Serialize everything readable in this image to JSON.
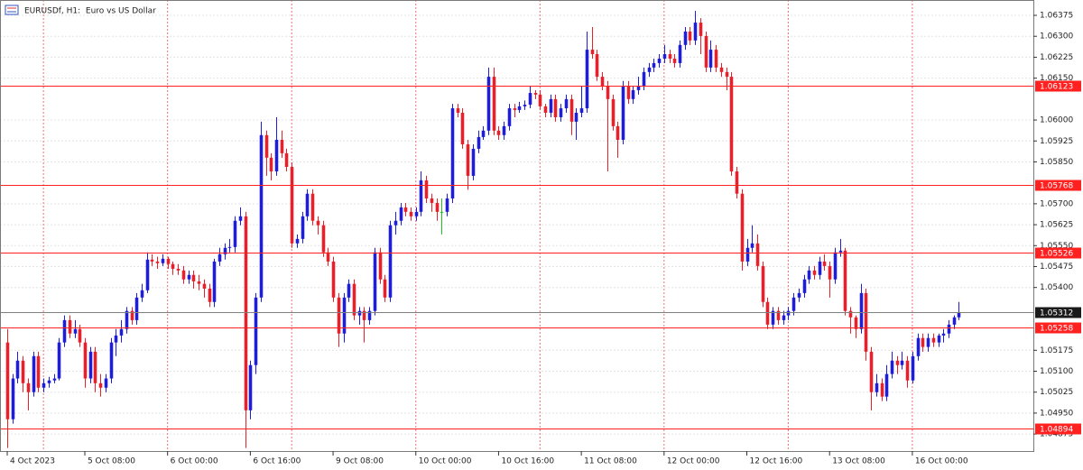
{
  "chart_data": {
    "type": "candlestick",
    "title": "EURUSDf, H1:  Euro vs US Dollar",
    "up_color": "#1e1ed8",
    "down_color": "#e8202a",
    "doji_color": "#20c020",
    "grid": true,
    "xlim": [
      -1.4,
      198.4
    ],
    "ylim": [
      1.04814,
      1.0643
    ],
    "xticks": [
      {
        "value": 0,
        "label": "4 Oct 2023"
      },
      {
        "value": 15,
        "label": "5 Oct 08:00"
      },
      {
        "value": 31,
        "label": "6 Oct 00:00"
      },
      {
        "value": 47,
        "label": "6 Oct 16:00"
      },
      {
        "value": 63,
        "label": "9 Oct 08:00"
      },
      {
        "value": 79,
        "label": "10 Oct 00:00"
      },
      {
        "value": 95,
        "label": "10 Oct 16:00"
      },
      {
        "value": 111,
        "label": "11 Oct 08:00"
      },
      {
        "value": 127,
        "label": "12 Oct 00:00"
      },
      {
        "value": 143,
        "label": "12 Oct 16:00"
      },
      {
        "value": 159,
        "label": "13 Oct 08:00"
      },
      {
        "value": 175,
        "label": "16 Oct 00:00"
      }
    ],
    "x_grid": [
      7,
      31,
      55,
      79,
      103,
      127,
      151,
      175
    ],
    "yticks": [
      {
        "value": 1.06375,
        "label": "1.06375"
      },
      {
        "value": 1.063,
        "label": "1.06300"
      },
      {
        "value": 1.06225,
        "label": "1.06225"
      },
      {
        "value": 1.0615,
        "label": "1.06150"
      },
      {
        "value": 1.06,
        "label": "1.06000"
      },
      {
        "value": 1.05925,
        "label": "1.05925"
      },
      {
        "value": 1.0585,
        "label": "1.05850"
      },
      {
        "value": 1.057,
        "label": "1.05700"
      },
      {
        "value": 1.05625,
        "label": "1.05625"
      },
      {
        "value": 1.0555,
        "label": "1.05550"
      },
      {
        "value": 1.05475,
        "label": "1.05475"
      },
      {
        "value": 1.054,
        "label": "1.05400"
      },
      {
        "value": 1.05175,
        "label": "1.05175"
      },
      {
        "value": 1.051,
        "label": "1.05100"
      },
      {
        "value": 1.05025,
        "label": "1.05025"
      },
      {
        "value": 1.0495,
        "label": "1.04950"
      },
      {
        "value": 1.04875,
        "label": "1.04875"
      }
    ],
    "levels": [
      {
        "value": 1.06123,
        "label": "1.06123",
        "color": "#ff2020"
      },
      {
        "value": 1.05768,
        "label": "1.05768",
        "color": "#ff2020"
      },
      {
        "value": 1.05526,
        "label": "1.05526",
        "color": "#ff2020"
      },
      {
        "value": 1.05312,
        "label": "1.05312",
        "color": "#808080"
      },
      {
        "value": 1.05258,
        "label": "1.05258",
        "color": "#ff2020"
      },
      {
        "value": 1.04894,
        "label": "1.04894",
        "color": "#ff2020"
      }
    ],
    "ohlc": [
      [
        1.05203,
        1.05251,
        1.04825,
        1.04928
      ],
      [
        1.04928,
        1.0509,
        1.04912,
        1.05074
      ],
      [
        1.05074,
        1.0517,
        1.05057,
        1.05138
      ],
      [
        1.05138,
        1.05154,
        1.05025,
        1.05057
      ],
      [
        1.05057,
        1.05074,
        1.0496,
        1.05025
      ],
      [
        1.05025,
        1.0517,
        1.05009,
        1.05154
      ],
      [
        1.05154,
        1.0517,
        1.05025,
        1.05041
      ],
      [
        1.05041,
        1.05074,
        1.05025,
        1.05057
      ],
      [
        1.05057,
        1.0508,
        1.05041,
        1.05067
      ],
      [
        1.05067,
        1.0509,
        1.05057,
        1.05074
      ],
      [
        1.05074,
        1.05219,
        1.05067,
        1.05203
      ],
      [
        1.05203,
        1.053,
        1.05187,
        1.05283
      ],
      [
        1.05283,
        1.053,
        1.05219,
        1.05235
      ],
      [
        1.05235,
        1.05283,
        1.05219,
        1.05251
      ],
      [
        1.05251,
        1.05267,
        1.05187,
        1.05203
      ],
      [
        1.05203,
        1.05219,
        1.05041,
        1.05074
      ],
      [
        1.05074,
        1.05187,
        1.05057,
        1.0517
      ],
      [
        1.0517,
        1.05187,
        1.05025,
        1.05057
      ],
      [
        1.05057,
        1.0509,
        1.05009,
        1.05041
      ],
      [
        1.05041,
        1.0509,
        1.05025,
        1.05074
      ],
      [
        1.05074,
        1.05219,
        1.05057,
        1.05203
      ],
      [
        1.05203,
        1.05251,
        1.05154,
        1.05228
      ],
      [
        1.05228,
        1.05283,
        1.05203,
        1.05251
      ],
      [
        1.05251,
        1.0533,
        1.05235,
        1.05316
      ],
      [
        1.05316,
        1.0533,
        1.05267,
        1.05283
      ],
      [
        1.05283,
        1.0538,
        1.05267,
        1.05364
      ],
      [
        1.05364,
        1.05413,
        1.05348,
        1.0539
      ],
      [
        1.0539,
        1.05526,
        1.0538,
        1.055
      ],
      [
        1.055,
        1.05519,
        1.05477,
        1.05493
      ],
      [
        1.05493,
        1.0551,
        1.05467,
        1.05487
      ],
      [
        1.05487,
        1.05519,
        1.05477,
        1.05503
      ],
      [
        1.05503,
        1.0551,
        1.05467,
        1.05484
      ],
      [
        1.05484,
        1.05493,
        1.05445,
        1.05467
      ],
      [
        1.05467,
        1.05484,
        1.05445,
        1.05461
      ],
      [
        1.05461,
        1.05477,
        1.05413,
        1.05429
      ],
      [
        1.05429,
        1.05461,
        1.05413,
        1.05445
      ],
      [
        1.05445,
        1.05461,
        1.05396,
        1.05422
      ],
      [
        1.05422,
        1.05445,
        1.0539,
        1.05413
      ],
      [
        1.05413,
        1.05429,
        1.05364,
        1.05396
      ],
      [
        1.05396,
        1.05413,
        1.0533,
        1.05348
      ],
      [
        1.05348,
        1.05503,
        1.0533,
        1.05493
      ],
      [
        1.05493,
        1.05542,
        1.05477,
        1.05519
      ],
      [
        1.05519,
        1.05558,
        1.055,
        1.05542
      ],
      [
        1.05542,
        1.05574,
        1.05526,
        1.05545
      ],
      [
        1.05545,
        1.05655,
        1.05526,
        1.05639
      ],
      [
        1.05639,
        1.05687,
        1.05623,
        1.05655
      ],
      [
        1.05655,
        1.05671,
        1.04825,
        1.0496
      ],
      [
        1.0496,
        1.05138,
        1.04928,
        1.05122
      ],
      [
        1.05122,
        1.0538,
        1.0509,
        1.05364
      ],
      [
        1.05364,
        1.05994,
        1.05348,
        1.05946
      ],
      [
        1.05946,
        1.05962,
        1.058,
        1.05865
      ],
      [
        1.05865,
        1.05881,
        1.05784,
        1.05816
      ],
      [
        1.05816,
        1.0601,
        1.058,
        1.05929
      ],
      [
        1.05929,
        1.05962,
        1.05865,
        1.05881
      ],
      [
        1.05881,
        1.05897,
        1.05816,
        1.05832
      ],
      [
        1.05832,
        1.05848,
        1.05542,
        1.05558
      ],
      [
        1.05558,
        1.0559,
        1.05542,
        1.05574
      ],
      [
        1.05574,
        1.05671,
        1.05558,
        1.05655
      ],
      [
        1.05655,
        1.05752,
        1.05639,
        1.05736
      ],
      [
        1.05736,
        1.05752,
        1.05623,
        1.05639
      ],
      [
        1.05639,
        1.05655,
        1.0559,
        1.05623
      ],
      [
        1.05623,
        1.05639,
        1.0551,
        1.05526
      ],
      [
        1.05526,
        1.05542,
        1.05477,
        1.05493
      ],
      [
        1.05493,
        1.0551,
        1.05348,
        1.05364
      ],
      [
        1.05364,
        1.0538,
        1.05187,
        1.05235
      ],
      [
        1.05235,
        1.0538,
        1.05203,
        1.05364
      ],
      [
        1.05364,
        1.05429,
        1.05348,
        1.05413
      ],
      [
        1.05413,
        1.05429,
        1.05283,
        1.053
      ],
      [
        1.053,
        1.0533,
        1.05267,
        1.05316
      ],
      [
        1.05316,
        1.0533,
        1.05203,
        1.05283
      ],
      [
        1.05283,
        1.0533,
        1.05267,
        1.05316
      ],
      [
        1.05316,
        1.05542,
        1.053,
        1.05526
      ],
      [
        1.05526,
        1.05542,
        1.05413,
        1.05429
      ],
      [
        1.05429,
        1.05445,
        1.05348,
        1.05364
      ],
      [
        1.05364,
        1.05639,
        1.05348,
        1.05623
      ],
      [
        1.05623,
        1.05671,
        1.0559,
        1.05639
      ],
      [
        1.05639,
        1.05703,
        1.05623,
        1.05687
      ],
      [
        1.05687,
        1.05703,
        1.05655,
        1.05671
      ],
      [
        1.05671,
        1.05687,
        1.05639,
        1.05655
      ],
      [
        1.05655,
        1.05687,
        1.05639,
        1.05671
      ],
      [
        1.05671,
        1.05816,
        1.05655,
        1.05784
      ],
      [
        1.05784,
        1.058,
        1.05703,
        1.05719
      ],
      [
        1.05719,
        1.05736,
        1.05671,
        1.05703
      ],
      [
        1.05703,
        1.05719,
        1.05639,
        1.05671
      ],
      [
        1.05671,
        1.05719,
        1.0559,
        1.05671
      ],
      [
        1.05671,
        1.05736,
        1.05655,
        1.05719
      ],
      [
        1.05719,
        1.06058,
        1.05703,
        1.06042
      ],
      [
        1.06042,
        1.06058,
        1.0601,
        1.06026
      ],
      [
        1.06026,
        1.06042,
        1.05897,
        1.05913
      ],
      [
        1.05913,
        1.05929,
        1.0575,
        1.058
      ],
      [
        1.058,
        1.05913,
        1.05784,
        1.05897
      ],
      [
        1.05897,
        1.05962,
        1.05881,
        1.05939
      ],
      [
        1.05939,
        1.05978,
        1.05929,
        1.05962
      ],
      [
        1.05962,
        1.06188,
        1.05946,
        1.06155
      ],
      [
        1.06155,
        1.06188,
        1.05946,
        1.05962
      ],
      [
        1.05962,
        1.05978,
        1.05929,
        1.05946
      ],
      [
        1.05946,
        1.05994,
        1.05929,
        1.05978
      ],
      [
        1.05978,
        1.06058,
        1.05962,
        1.06042
      ],
      [
        1.06042,
        1.06058,
        1.0601,
        1.06036
      ],
      [
        1.06036,
        1.06065,
        1.06026,
        1.06049
      ],
      [
        1.06049,
        1.0607,
        1.06036,
        1.06055
      ],
      [
        1.06055,
        1.06123,
        1.06042,
        1.06097
      ],
      [
        1.06097,
        1.06107,
        1.06075,
        1.06091
      ],
      [
        1.06091,
        1.06107,
        1.06036,
        1.06049
      ],
      [
        1.06049,
        1.06058,
        1.0601,
        1.06026
      ],
      [
        1.06026,
        1.06091,
        1.0601,
        1.06075
      ],
      [
        1.06075,
        1.06091,
        1.05994,
        1.0601
      ],
      [
        1.0601,
        1.06058,
        1.05994,
        1.06042
      ],
      [
        1.06042,
        1.06091,
        1.06026,
        1.06075
      ],
      [
        1.06075,
        1.06091,
        1.05946,
        1.05994
      ],
      [
        1.05994,
        1.06042,
        1.05929,
        1.06026
      ],
      [
        1.06026,
        1.06123,
        1.0601,
        1.06042
      ],
      [
        1.06042,
        1.06317,
        1.06026,
        1.06252
      ],
      [
        1.06252,
        1.06333,
        1.0622,
        1.06236
      ],
      [
        1.06236,
        1.06252,
        1.0614,
        1.06155
      ],
      [
        1.06155,
        1.06172,
        1.06107,
        1.06123
      ],
      [
        1.06123,
        1.0614,
        1.05816,
        1.06075
      ],
      [
        1.06075,
        1.06091,
        1.05962,
        1.05978
      ],
      [
        1.05978,
        1.05994,
        1.05865,
        1.05929
      ],
      [
        1.05929,
        1.0614,
        1.05913,
        1.06123
      ],
      [
        1.06123,
        1.0614,
        1.06058,
        1.06075
      ],
      [
        1.06075,
        1.06123,
        1.06058,
        1.06107
      ],
      [
        1.06107,
        1.06155,
        1.06091,
        1.06123
      ],
      [
        1.06123,
        1.06188,
        1.06107,
        1.06172
      ],
      [
        1.06172,
        1.06204,
        1.06155,
        1.06188
      ],
      [
        1.06188,
        1.0622,
        1.06172,
        1.06204
      ],
      [
        1.06204,
        1.06236,
        1.06188,
        1.0622
      ],
      [
        1.0622,
        1.06269,
        1.06204,
        1.06236
      ],
      [
        1.06236,
        1.06252,
        1.06204,
        1.0622
      ],
      [
        1.0622,
        1.06236,
        1.06188,
        1.06204
      ],
      [
        1.06204,
        1.06285,
        1.06188,
        1.06269
      ],
      [
        1.06269,
        1.06333,
        1.06252,
        1.06317
      ],
      [
        1.06317,
        1.06333,
        1.06269,
        1.06285
      ],
      [
        1.06285,
        1.06391,
        1.06269,
        1.06349
      ],
      [
        1.06349,
        1.06365,
        1.06236,
        1.06301
      ],
      [
        1.06301,
        1.06317,
        1.06172,
        1.06188
      ],
      [
        1.06188,
        1.06285,
        1.06172,
        1.06252
      ],
      [
        1.06252,
        1.06269,
        1.06172,
        1.06188
      ],
      [
        1.06188,
        1.06204,
        1.06155,
        1.06172
      ],
      [
        1.06172,
        1.06188,
        1.06107,
        1.06155
      ],
      [
        1.06155,
        1.06172,
        1.058,
        1.05816
      ],
      [
        1.05816,
        1.05832,
        1.05719,
        1.05736
      ],
      [
        1.05736,
        1.05752,
        1.05461,
        1.05493
      ],
      [
        1.05493,
        1.05574,
        1.05477,
        1.05542
      ],
      [
        1.05542,
        1.05623,
        1.05526,
        1.05558
      ],
      [
        1.05558,
        1.0559,
        1.05461,
        1.05477
      ],
      [
        1.05477,
        1.05493,
        1.0533,
        1.05348
      ],
      [
        1.05348,
        1.05364,
        1.05251,
        1.05267
      ],
      [
        1.05267,
        1.0533,
        1.05251,
        1.05316
      ],
      [
        1.05316,
        1.0533,
        1.05267,
        1.05283
      ],
      [
        1.05283,
        1.05316,
        1.05267,
        1.053
      ],
      [
        1.053,
        1.0533,
        1.05283,
        1.05316
      ],
      [
        1.05316,
        1.0538,
        1.053,
        1.05364
      ],
      [
        1.05364,
        1.05396,
        1.05348,
        1.0538
      ],
      [
        1.0538,
        1.05445,
        1.05364,
        1.05429
      ],
      [
        1.05429,
        1.05477,
        1.05413,
        1.05461
      ],
      [
        1.05461,
        1.05477,
        1.05429,
        1.05445
      ],
      [
        1.05445,
        1.0551,
        1.05429,
        1.05493
      ],
      [
        1.05493,
        1.05519,
        1.05461,
        1.05477
      ],
      [
        1.05477,
        1.05493,
        1.05364,
        1.05429
      ],
      [
        1.05429,
        1.05542,
        1.05413,
        1.05526
      ],
      [
        1.05526,
        1.05574,
        1.0551,
        1.05532
      ],
      [
        1.05532,
        1.05542,
        1.053,
        1.05316
      ],
      [
        1.05316,
        1.0533,
        1.05235,
        1.05293
      ],
      [
        1.05293,
        1.053,
        1.05219,
        1.05251
      ],
      [
        1.05251,
        1.05413,
        1.05235,
        1.0538
      ],
      [
        1.0538,
        1.05396,
        1.05138,
        1.0517
      ],
      [
        1.0517,
        1.05187,
        1.0496,
        1.05025
      ],
      [
        1.05025,
        1.0509,
        1.05009,
        1.05057
      ],
      [
        1.05057,
        1.05074,
        1.04993,
        1.05009
      ],
      [
        1.05009,
        1.05122,
        1.04993,
        1.0509
      ],
      [
        1.0509,
        1.0517,
        1.05074,
        1.05138
      ],
      [
        1.05138,
        1.05154,
        1.0509,
        1.05122
      ],
      [
        1.05122,
        1.0517,
        1.05106,
        1.05138
      ],
      [
        1.05138,
        1.05154,
        1.05041,
        1.05067
      ],
      [
        1.05067,
        1.0517,
        1.05057,
        1.05154
      ],
      [
        1.05154,
        1.05235,
        1.05138,
        1.05219
      ],
      [
        1.05219,
        1.05235,
        1.0517,
        1.05187
      ],
      [
        1.05187,
        1.05235,
        1.0517,
        1.05219
      ],
      [
        1.05219,
        1.05235,
        1.05187,
        1.05203
      ],
      [
        1.05203,
        1.05235,
        1.05187,
        1.05228
      ],
      [
        1.05228,
        1.05251,
        1.05203,
        1.05235
      ],
      [
        1.05235,
        1.05283,
        1.05219,
        1.05267
      ],
      [
        1.05267,
        1.053,
        1.05251,
        1.05293
      ],
      [
        1.05293,
        1.05348,
        1.05283,
        1.05312
      ]
    ]
  }
}
